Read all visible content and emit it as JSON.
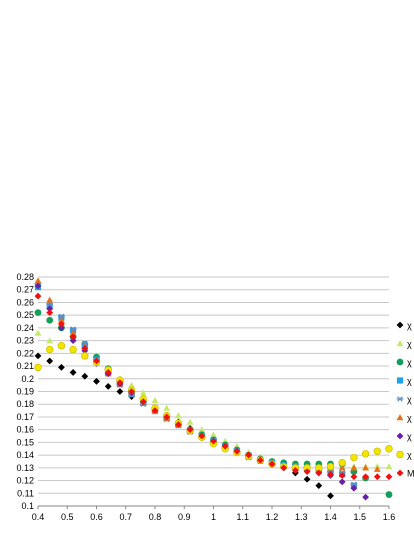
{
  "chart_data": {
    "type": "scatter",
    "title": "",
    "xlabel": "",
    "ylabel": "",
    "xlim": [
      0.4,
      1.6
    ],
    "ylim": [
      0.1,
      0.28
    ],
    "xticks": [
      "0.4",
      "0.5",
      "0.6",
      "0.7",
      "0.8",
      "0.9",
      "1",
      "1.1",
      "1.2",
      "1.3",
      "1.4",
      "1.5",
      "1.6"
    ],
    "yticks": [
      "0.1",
      "0.11",
      "0.12",
      "0.13",
      "0.14",
      "0.15",
      "0.16",
      "0.17",
      "0.18",
      "0.19",
      "0.2",
      "0.21",
      "0.22",
      "0.23",
      "0.24",
      "0.25",
      "0.26",
      "0.27",
      "0.28"
    ],
    "grid": "horizontal",
    "legend_position": "right",
    "series": [
      {
        "name": "χ",
        "marker": "diamond",
        "color": "#000000",
        "x": [
          0.4,
          0.44,
          0.48,
          0.52,
          0.56,
          0.6,
          0.64,
          0.68,
          0.72,
          0.76,
          0.8,
          0.84,
          0.88,
          0.92,
          0.96,
          1.0,
          1.04,
          1.08,
          1.12,
          1.16,
          1.2,
          1.24,
          1.28,
          1.32,
          1.36,
          1.4
        ],
        "y": [
          0.218,
          0.214,
          0.209,
          0.205,
          0.202,
          0.198,
          0.194,
          0.19,
          0.186,
          0.182,
          0.176,
          0.171,
          0.166,
          0.161,
          0.157,
          0.153,
          0.149,
          0.145,
          0.141,
          0.137,
          0.133,
          0.13,
          0.126,
          0.121,
          0.116,
          0.108
        ]
      },
      {
        "name": "χ",
        "marker": "triangle",
        "color": "#c6e96b",
        "x": [
          0.4,
          0.44,
          0.48,
          0.52,
          0.56,
          0.6,
          0.64,
          0.68,
          0.72,
          0.76,
          0.8,
          0.84,
          0.88,
          0.92,
          0.96,
          1.0,
          1.04,
          1.08,
          1.12,
          1.16,
          1.2,
          1.24,
          1.28,
          1.32,
          1.36,
          1.4,
          1.44,
          1.48,
          1.52,
          1.56,
          1.6
        ],
        "y": [
          0.236,
          0.23,
          0.226,
          0.222,
          0.218,
          0.213,
          0.207,
          0.2,
          0.195,
          0.189,
          0.183,
          0.177,
          0.171,
          0.166,
          0.16,
          0.156,
          0.151,
          0.147,
          0.142,
          0.138,
          0.135,
          0.133,
          0.133,
          0.132,
          0.132,
          0.131,
          0.131,
          0.131,
          0.131,
          0.131,
          0.131
        ]
      },
      {
        "name": "χ",
        "marker": "circle",
        "color": "#10a05a",
        "x": [
          0.4,
          0.44,
          0.48,
          0.52,
          0.56,
          0.6,
          0.64,
          0.68,
          0.72,
          0.76,
          0.8,
          0.84,
          0.88,
          0.92,
          0.96,
          1.0,
          1.04,
          1.08,
          1.12,
          1.16,
          1.2,
          1.24,
          1.28,
          1.32,
          1.36,
          1.4,
          1.44,
          1.48,
          1.52,
          1.6
        ],
        "y": [
          0.252,
          0.246,
          0.24,
          0.233,
          0.227,
          0.217,
          0.208,
          0.198,
          0.189,
          0.182,
          0.176,
          0.17,
          0.165,
          0.16,
          0.156,
          0.152,
          0.148,
          0.144,
          0.14,
          0.137,
          0.135,
          0.134,
          0.133,
          0.133,
          0.133,
          0.133,
          0.133,
          0.127,
          0.122,
          0.109
        ]
      },
      {
        "name": "χ",
        "marker": "square",
        "color": "#1aa3e8",
        "x": [
          0.4,
          0.44,
          0.48,
          0.52,
          0.56,
          0.6,
          0.64,
          0.68,
          0.72,
          0.76,
          0.8,
          0.84,
          0.88,
          0.92,
          0.96,
          1.0,
          1.04,
          1.08,
          1.12,
          1.16,
          1.2,
          1.24,
          1.28,
          1.32,
          1.36,
          1.4,
          1.44,
          1.48
        ],
        "y": [
          0.272,
          0.257,
          0.248,
          0.238,
          0.226,
          0.215,
          0.205,
          0.196,
          0.188,
          0.181,
          0.175,
          0.169,
          0.164,
          0.159,
          0.155,
          0.151,
          0.147,
          0.143,
          0.139,
          0.136,
          0.134,
          0.132,
          0.131,
          0.13,
          0.128,
          0.127,
          0.125,
          0.116
        ]
      },
      {
        "name": "χ",
        "marker": "star",
        "color": "#5b8fc8",
        "x": [
          0.4,
          0.44,
          0.48,
          0.52,
          0.56,
          0.6,
          0.64,
          0.68,
          0.72,
          0.76,
          0.8,
          0.84,
          0.88,
          0.92,
          0.96,
          1.0,
          1.04,
          1.08,
          1.12,
          1.16,
          1.2,
          1.24,
          1.28,
          1.32,
          1.36,
          1.4,
          1.44,
          1.48
        ],
        "y": [
          0.275,
          0.259,
          0.249,
          0.239,
          0.228,
          0.215,
          0.204,
          0.195,
          0.187,
          0.18,
          0.174,
          0.168,
          0.163,
          0.158,
          0.154,
          0.15,
          0.146,
          0.142,
          0.138,
          0.135,
          0.133,
          0.131,
          0.13,
          0.129,
          0.128,
          0.127,
          0.126,
          0.117
        ]
      },
      {
        "name": "χ",
        "marker": "triangle",
        "color": "#e8701a",
        "x": [
          0.4,
          0.44,
          0.48,
          0.52,
          0.56,
          0.6,
          0.64,
          0.68,
          0.72,
          0.76,
          0.8,
          0.84,
          0.88,
          0.92,
          0.96,
          1.0,
          1.04,
          1.08,
          1.12,
          1.16,
          1.2,
          1.24,
          1.28,
          1.32,
          1.36,
          1.4,
          1.44,
          1.48,
          1.52,
          1.56
        ],
        "y": [
          0.277,
          0.262,
          0.246,
          0.236,
          0.225,
          0.214,
          0.204,
          0.196,
          0.189,
          0.182,
          0.175,
          0.169,
          0.164,
          0.159,
          0.155,
          0.151,
          0.147,
          0.143,
          0.14,
          0.137,
          0.134,
          0.132,
          0.131,
          0.13,
          0.13,
          0.13,
          0.13,
          0.13,
          0.13,
          0.129
        ]
      },
      {
        "name": "χ",
        "marker": "diamond",
        "color": "#6a1fa8",
        "x": [
          0.4,
          0.44,
          0.48,
          0.52,
          0.56,
          0.6,
          0.64,
          0.68,
          0.72,
          0.76,
          0.8,
          0.84,
          0.88,
          0.92,
          0.96,
          1.0,
          1.04,
          1.08,
          1.12,
          1.16,
          1.2,
          1.24,
          1.28,
          1.32,
          1.36,
          1.4,
          1.44,
          1.48,
          1.52
        ],
        "y": [
          0.273,
          0.255,
          0.24,
          0.23,
          0.222,
          0.212,
          0.204,
          0.196,
          0.189,
          0.182,
          0.176,
          0.17,
          0.165,
          0.16,
          0.155,
          0.151,
          0.147,
          0.143,
          0.139,
          0.136,
          0.133,
          0.131,
          0.129,
          0.128,
          0.126,
          0.124,
          0.119,
          0.114,
          0.107
        ]
      },
      {
        "name": "χ",
        "marker": "circle",
        "color": "#f2e600",
        "x": [
          0.4,
          0.44,
          0.48,
          0.52,
          0.56,
          0.6,
          0.64,
          0.68,
          0.72,
          0.76,
          0.8,
          0.84,
          0.88,
          0.92,
          0.96,
          1.0,
          1.04,
          1.08,
          1.12,
          1.16,
          1.2,
          1.24,
          1.28,
          1.32,
          1.36,
          1.4,
          1.44,
          1.48,
          1.52,
          1.56,
          1.6
        ],
        "y": [
          0.209,
          0.223,
          0.226,
          0.223,
          0.218,
          0.213,
          0.207,
          0.199,
          0.191,
          0.184,
          0.177,
          0.171,
          0.165,
          0.159,
          0.154,
          0.149,
          0.145,
          0.142,
          0.139,
          0.136,
          0.133,
          0.131,
          0.13,
          0.13,
          0.13,
          0.131,
          0.134,
          0.138,
          0.141,
          0.143,
          0.145
        ]
      },
      {
        "name": "M",
        "marker": "diamond",
        "color": "#f01010",
        "x": [
          0.4,
          0.44,
          0.48,
          0.52,
          0.56,
          0.6,
          0.64,
          0.68,
          0.72,
          0.76,
          0.8,
          0.84,
          0.88,
          0.92,
          0.96,
          1.0,
          1.04,
          1.08,
          1.12,
          1.16,
          1.2,
          1.24,
          1.28,
          1.32,
          1.36,
          1.4,
          1.44,
          1.48,
          1.52,
          1.56,
          1.6
        ],
        "y": [
          0.265,
          0.252,
          0.243,
          0.233,
          0.224,
          0.214,
          0.205,
          0.197,
          0.19,
          0.182,
          0.175,
          0.17,
          0.164,
          0.16,
          0.155,
          0.151,
          0.147,
          0.143,
          0.14,
          0.136,
          0.133,
          0.13,
          0.128,
          0.127,
          0.126,
          0.125,
          0.124,
          0.123,
          0.123,
          0.123,
          0.123
        ]
      }
    ]
  }
}
